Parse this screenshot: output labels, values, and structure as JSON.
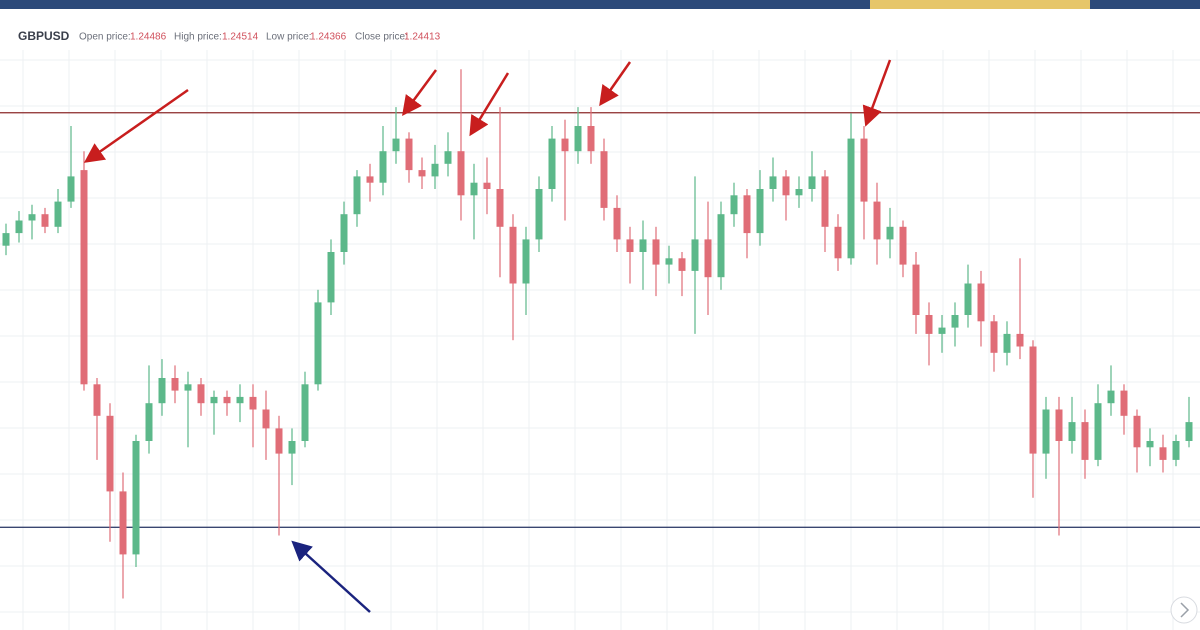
{
  "header": {
    "symbol": "GBPUSD",
    "fields": [
      {
        "label": "Open price:",
        "value": "1.24486"
      },
      {
        "label": "High price:",
        "value": "1.24514"
      },
      {
        "label": "Low price:",
        "value": "1.24366"
      },
      {
        "label": "Close price:",
        "value": "1.24413"
      }
    ]
  },
  "chart_data": {
    "type": "candlestick",
    "ylim": [
      0,
      100
    ],
    "grid": true,
    "up_color": "#5cb88a",
    "down_color": "#e06d77",
    "levels": [
      {
        "value": 82.1,
        "color": "#8b2a2a"
      },
      {
        "value": 16.3,
        "color": "#3a4670"
      }
    ],
    "ohlc": [
      [
        61,
        64.5,
        59.5,
        63
      ],
      [
        63,
        66.5,
        61.5,
        65
      ],
      [
        65,
        67.5,
        62,
        66
      ],
      [
        66,
        67,
        63,
        64
      ],
      [
        64,
        70,
        63,
        68
      ],
      [
        68,
        80,
        67,
        72
      ],
      [
        73,
        76,
        38,
        39
      ],
      [
        39,
        40,
        27,
        34
      ],
      [
        34,
        36,
        14,
        22
      ],
      [
        22,
        25,
        5,
        12
      ],
      [
        12,
        31,
        10,
        30
      ],
      [
        30,
        42,
        28,
        36
      ],
      [
        36,
        43,
        34,
        40
      ],
      [
        40,
        42,
        36,
        38
      ],
      [
        38,
        41,
        29,
        39
      ],
      [
        39,
        40,
        34,
        36
      ],
      [
        36,
        38,
        31,
        37
      ],
      [
        37,
        38,
        34,
        36
      ],
      [
        36,
        39,
        33,
        37
      ],
      [
        37,
        39,
        29,
        35
      ],
      [
        35,
        38,
        27,
        32
      ],
      [
        32,
        34,
        15,
        28
      ],
      [
        28,
        32,
        23,
        30
      ],
      [
        30,
        41,
        29,
        39
      ],
      [
        39,
        54,
        38,
        52
      ],
      [
        52,
        62,
        50,
        60
      ],
      [
        60,
        68,
        58,
        66
      ],
      [
        66,
        73,
        64,
        72
      ],
      [
        72,
        74,
        68,
        71
      ],
      [
        71,
        80,
        69,
        76
      ],
      [
        76,
        83,
        74,
        78
      ],
      [
        78,
        79,
        71,
        73
      ],
      [
        73,
        75,
        70,
        72
      ],
      [
        72,
        77,
        70,
        74
      ],
      [
        74,
        79,
        72,
        76
      ],
      [
        76,
        89,
        65,
        69
      ],
      [
        69,
        74,
        62,
        71
      ],
      [
        71,
        75,
        66,
        70
      ],
      [
        70,
        83,
        56,
        64
      ],
      [
        64,
        66,
        46,
        55
      ],
      [
        55,
        64,
        50,
        62
      ],
      [
        62,
        72,
        60,
        70
      ],
      [
        70,
        80,
        68,
        78
      ],
      [
        78,
        81,
        65,
        76
      ],
      [
        76,
        83,
        74,
        80
      ],
      [
        80,
        83,
        74,
        76
      ],
      [
        76,
        78,
        65,
        67
      ],
      [
        67,
        69,
        60,
        62
      ],
      [
        62,
        64,
        55,
        60
      ],
      [
        60,
        65,
        54,
        62
      ],
      [
        62,
        64,
        53,
        58
      ],
      [
        58,
        61,
        55,
        59
      ],
      [
        59,
        60,
        53,
        57
      ],
      [
        57,
        72,
        47,
        62
      ],
      [
        62,
        68,
        50,
        56
      ],
      [
        56,
        68,
        54,
        66
      ],
      [
        66,
        71,
        64,
        69
      ],
      [
        69,
        70,
        59,
        63
      ],
      [
        63,
        73,
        61,
        70
      ],
      [
        70,
        75,
        68,
        72
      ],
      [
        72,
        73,
        65,
        69
      ],
      [
        69,
        72,
        67,
        70
      ],
      [
        70,
        76,
        68,
        72
      ],
      [
        72,
        73,
        60,
        64
      ],
      [
        64,
        66,
        57,
        59
      ],
      [
        59,
        82,
        58,
        78
      ],
      [
        78,
        80,
        62,
        68
      ],
      [
        68,
        71,
        58,
        62
      ],
      [
        62,
        67,
        59,
        64
      ],
      [
        64,
        65,
        56,
        58
      ],
      [
        58,
        60,
        47,
        50
      ],
      [
        50,
        52,
        42,
        47
      ],
      [
        47,
        50,
        44,
        48
      ],
      [
        48,
        52,
        45,
        50
      ],
      [
        50,
        58,
        48,
        55
      ],
      [
        55,
        57,
        45,
        49
      ],
      [
        49,
        50,
        41,
        44
      ],
      [
        44,
        49,
        42,
        47
      ],
      [
        47,
        59,
        43,
        45
      ],
      [
        45,
        46,
        21,
        28
      ],
      [
        28,
        37,
        24,
        35
      ],
      [
        35,
        37,
        15,
        30
      ],
      [
        30,
        37,
        28,
        33
      ],
      [
        33,
        35,
        24,
        27
      ],
      [
        27,
        39,
        26,
        36
      ],
      [
        36,
        42,
        34,
        38
      ],
      [
        38,
        39,
        31,
        34
      ],
      [
        34,
        35,
        25,
        29
      ],
      [
        29,
        32,
        26,
        30
      ],
      [
        29,
        31,
        25,
        27
      ],
      [
        27,
        31,
        26,
        30
      ],
      [
        30,
        37,
        29,
        33
      ]
    ]
  }
}
